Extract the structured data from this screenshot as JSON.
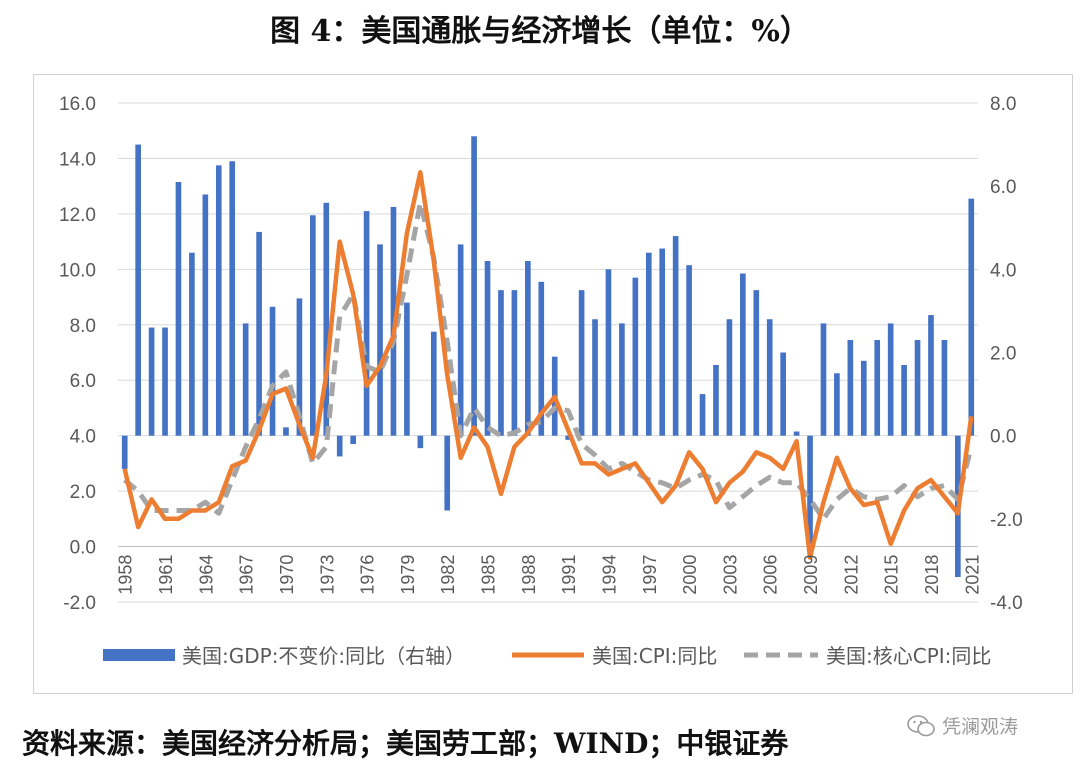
{
  "title": "图 4：美国通胀与经济增长（单位：%）",
  "source": "资料来源：美国经济分析局；美国劳工部；WIND；中银证券",
  "watermark": "凭澜观涛",
  "colors": {
    "gdp": "#4472C4",
    "cpi": "#ED7D31",
    "core": "#A5A5A5",
    "grid": "#D9D9D9",
    "axis_text": "#595959"
  },
  "chart_data": {
    "type": "bar",
    "years": [
      1958,
      1959,
      1960,
      1961,
      1962,
      1963,
      1964,
      1965,
      1966,
      1967,
      1968,
      1969,
      1970,
      1971,
      1972,
      1973,
      1974,
      1975,
      1976,
      1977,
      1978,
      1979,
      1980,
      1981,
      1982,
      1983,
      1984,
      1985,
      1986,
      1987,
      1988,
      1989,
      1990,
      1991,
      1992,
      1993,
      1994,
      1995,
      1996,
      1997,
      1998,
      1999,
      2000,
      2001,
      2002,
      2003,
      2004,
      2005,
      2006,
      2007,
      2008,
      2009,
      2010,
      2011,
      2012,
      2013,
      2014,
      2015,
      2016,
      2017,
      2018,
      2019,
      2020,
      2021
    ],
    "x_tick_labels": [
      "1958",
      "1961",
      "1964",
      "1967",
      "1970",
      "1973",
      "1976",
      "1979",
      "1982",
      "1985",
      "1988",
      "1991",
      "1994",
      "1997",
      "2000",
      "2003",
      "2006",
      "2009",
      "2012",
      "2015",
      "2018",
      "2021"
    ],
    "left_axis": {
      "min": -2.0,
      "max": 16.0,
      "ticks": [
        "-2.0",
        "0.0",
        "2.0",
        "4.0",
        "6.0",
        "8.0",
        "10.0",
        "12.0",
        "14.0",
        "16.0"
      ]
    },
    "right_axis": {
      "min": -4.0,
      "max": 8.0,
      "ticks": [
        "-4.0",
        "-2.0",
        "0.0",
        "2.0",
        "4.0",
        "6.0",
        "8.0"
      ]
    },
    "grid": true,
    "legend_position": "bottom",
    "series": [
      {
        "name": "美国:GDP:不变价:同比（右轴）",
        "type": "bar",
        "axis": "right",
        "values": [
          -0.8,
          7.0,
          2.6,
          2.6,
          6.1,
          4.4,
          5.8,
          6.5,
          6.6,
          2.7,
          4.9,
          3.1,
          0.2,
          3.3,
          5.3,
          5.6,
          -0.5,
          -0.2,
          5.4,
          4.6,
          5.5,
          3.2,
          -0.3,
          2.5,
          -1.8,
          4.6,
          7.2,
          4.2,
          3.5,
          3.5,
          4.2,
          3.7,
          1.9,
          -0.1,
          3.5,
          2.8,
          4.0,
          2.7,
          3.8,
          4.4,
          4.5,
          4.8,
          4.1,
          1.0,
          1.7,
          2.8,
          3.9,
          3.5,
          2.8,
          2.0,
          0.1,
          -2.6,
          2.7,
          1.5,
          2.3,
          1.8,
          2.3,
          2.7,
          1.7,
          2.3,
          2.9,
          2.3,
          -3.4,
          5.7
        ]
      },
      {
        "name": "美国:CPI:同比",
        "type": "line",
        "axis": "left",
        "values": [
          2.8,
          0.7,
          1.7,
          1.0,
          1.0,
          1.3,
          1.3,
          1.6,
          2.9,
          3.1,
          4.2,
          5.5,
          5.7,
          4.4,
          3.2,
          6.2,
          11.0,
          9.1,
          5.8,
          6.5,
          7.6,
          11.3,
          13.5,
          10.3,
          6.2,
          3.2,
          4.3,
          3.6,
          1.9,
          3.6,
          4.1,
          4.8,
          5.4,
          4.2,
          3.0,
          3.0,
          2.6,
          2.8,
          3.0,
          2.3,
          1.6,
          2.2,
          3.4,
          2.8,
          1.6,
          2.3,
          2.7,
          3.4,
          3.2,
          2.8,
          3.8,
          -0.4,
          1.6,
          3.2,
          2.1,
          1.5,
          1.6,
          0.1,
          1.3,
          2.1,
          2.4,
          1.8,
          1.2,
          4.7
        ]
      },
      {
        "name": "美国:核心CPI:同比",
        "type": "line",
        "axis": "left",
        "values": [
          2.4,
          2.0,
          1.3,
          1.3,
          1.3,
          1.3,
          1.6,
          1.2,
          2.4,
          3.6,
          4.6,
          5.8,
          6.3,
          4.7,
          3.0,
          3.6,
          8.3,
          9.1,
          6.5,
          6.3,
          7.4,
          9.8,
          12.4,
          10.4,
          7.4,
          4.0,
          5.0,
          4.3,
          4.0,
          4.1,
          4.4,
          4.5,
          5.0,
          4.9,
          3.7,
          3.3,
          2.8,
          3.0,
          2.7,
          2.4,
          2.3,
          2.1,
          2.4,
          2.6,
          2.4,
          1.4,
          1.8,
          2.2,
          2.5,
          2.3,
          2.3,
          1.7,
          1.0,
          1.7,
          2.1,
          1.8,
          1.7,
          1.8,
          2.2,
          1.8,
          2.1,
          2.2,
          1.7,
          3.6
        ]
      }
    ]
  }
}
